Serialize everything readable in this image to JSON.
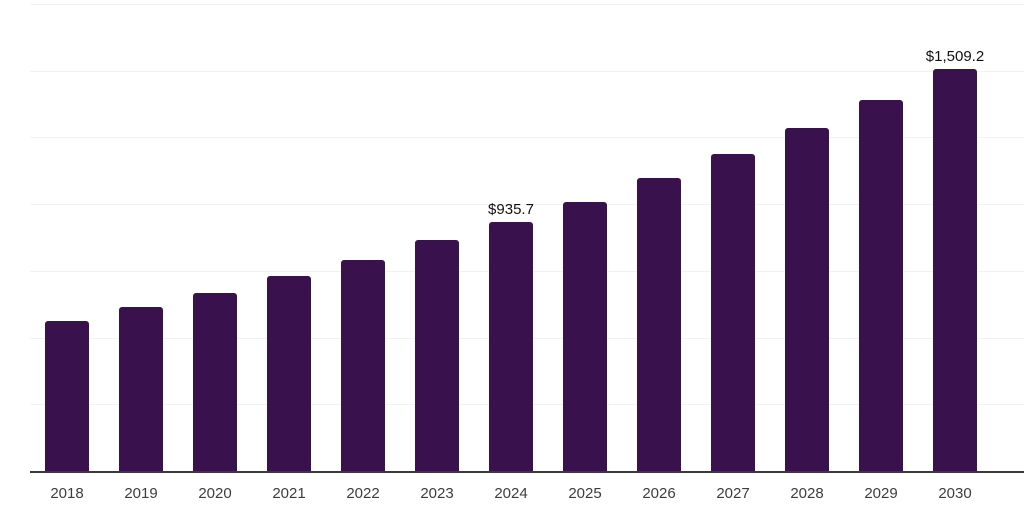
{
  "chart_data": {
    "type": "bar",
    "title": "",
    "xlabel": "",
    "ylabel": "",
    "categories": [
      "2018",
      "2019",
      "2020",
      "2021",
      "2022",
      "2023",
      "2024",
      "2025",
      "2026",
      "2027",
      "2028",
      "2029",
      "2030"
    ],
    "values": [
      565,
      620,
      670,
      735,
      795,
      870,
      935.7,
      1010,
      1100,
      1190,
      1290,
      1395,
      1509.2
    ],
    "point_labels": [
      "",
      "",
      "",
      "",
      "",
      "",
      "$935.7",
      "",
      "",
      "",
      "",
      "",
      "$1,509.2"
    ],
    "ylim": [
      0,
      1750
    ],
    "gridline_step": 250,
    "grid": "horizontal",
    "legend_position": "none",
    "y_axis_tick_labels_visible": false
  },
  "colors": {
    "bar_fill": "#38114d",
    "gridline": "#f2f2f2",
    "axis_line": "#3a3a3a",
    "tick_label_text": "#3d3d3d",
    "data_label_text": "#111111",
    "background": "#ffffff"
  }
}
